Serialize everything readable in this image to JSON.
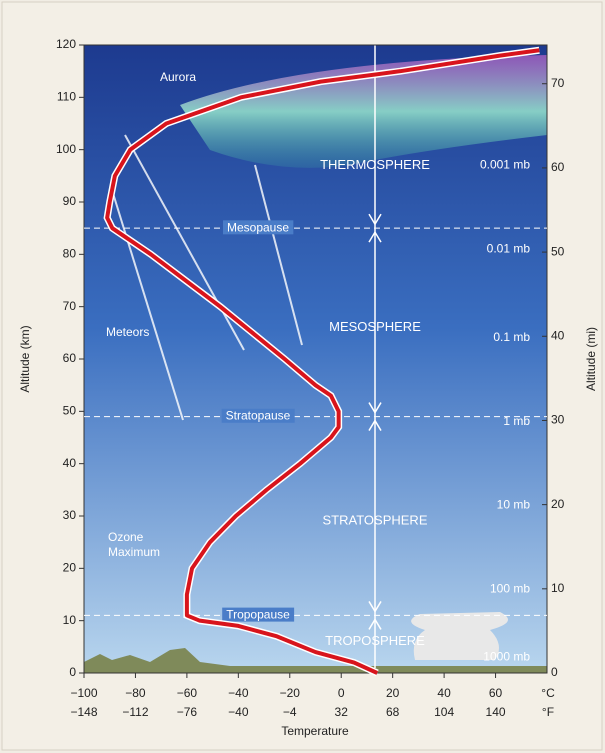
{
  "chart_data": {
    "type": "line",
    "x_title": "Temperature",
    "y_title": "Altitude (km)",
    "y2_title": "Altitude (mi)",
    "x": [
      14,
      5,
      -10,
      -25,
      -40,
      -55,
      -60,
      -60,
      -58,
      -51,
      -41,
      -29,
      -16,
      -4,
      -1,
      -1,
      -4,
      -10,
      -22,
      -47,
      -74,
      -89,
      -91,
      -90,
      -88,
      -82,
      -68,
      -39,
      -8,
      23,
      62,
      77
    ],
    "values": [
      0,
      2,
      4,
      7,
      9,
      10,
      11,
      15,
      20,
      25,
      30,
      35,
      40,
      45,
      47,
      50,
      53,
      55,
      60,
      70,
      80,
      85,
      87,
      90,
      95,
      100,
      105,
      110,
      113,
      115,
      118,
      119
    ],
    "color": "#d8141c",
    "xlim": [
      -100,
      80
    ],
    "ylim": [
      0,
      120
    ],
    "y2lim": [
      0,
      74.6
    ],
    "xticks": [
      {
        "value": -100,
        "label": "−100"
      },
      {
        "value": -80,
        "label": "−80"
      },
      {
        "value": -60,
        "label": "−60"
      },
      {
        "value": -40,
        "label": "−40"
      },
      {
        "value": -20,
        "label": "−20"
      },
      0,
      20,
      40,
      60
    ],
    "x2ticks": [
      {
        "value": -100,
        "label": "−148"
      },
      {
        "value": -80,
        "label": "−112"
      },
      {
        "value": -60,
        "label": "−76"
      },
      {
        "value": -40,
        "label": "−40"
      },
      {
        "value": -20,
        "label": "−4"
      },
      {
        "value": 0,
        "label": "32"
      },
      {
        "value": 20,
        "label": "68"
      },
      {
        "value": 40,
        "label": "104"
      },
      {
        "value": 60,
        "label": "140"
      }
    ],
    "x_unit": "°C",
    "x2_unit": "°F",
    "yticks": [
      0,
      10,
      20,
      30,
      40,
      50,
      60,
      70,
      80,
      90,
      100,
      110,
      120
    ],
    "y2ticks": [
      0,
      10,
      20,
      30,
      40,
      50,
      60,
      70
    ],
    "boundaries": [
      {
        "name": "Mesopause",
        "altitude": 85
      },
      {
        "name": "Stratopause",
        "altitude": 49
      },
      {
        "name": "Tropopause",
        "altitude": 11
      }
    ],
    "layers": [
      "THERMOSPHERE",
      "MESOSPHERE",
      "STRATOSPHERE",
      "TROPOSPHERE"
    ],
    "pressure_levels": [
      {
        "label": "0.001 mb",
        "altitude": 97
      },
      {
        "label": "0.01 mb",
        "altitude": 81
      },
      {
        "label": "0.1 mb",
        "altitude": 64
      },
      {
        "label": "1 mb",
        "altitude": 48
      },
      {
        "label": "10 mb",
        "altitude": 32
      },
      {
        "label": "100 mb",
        "altitude": 16
      },
      {
        "label": "1000 mb",
        "altitude": 3
      }
    ],
    "annotations": {
      "aurora": "Aurora",
      "meteors": "Meteors",
      "ozone": [
        "Ozone",
        "Maximum"
      ]
    }
  }
}
